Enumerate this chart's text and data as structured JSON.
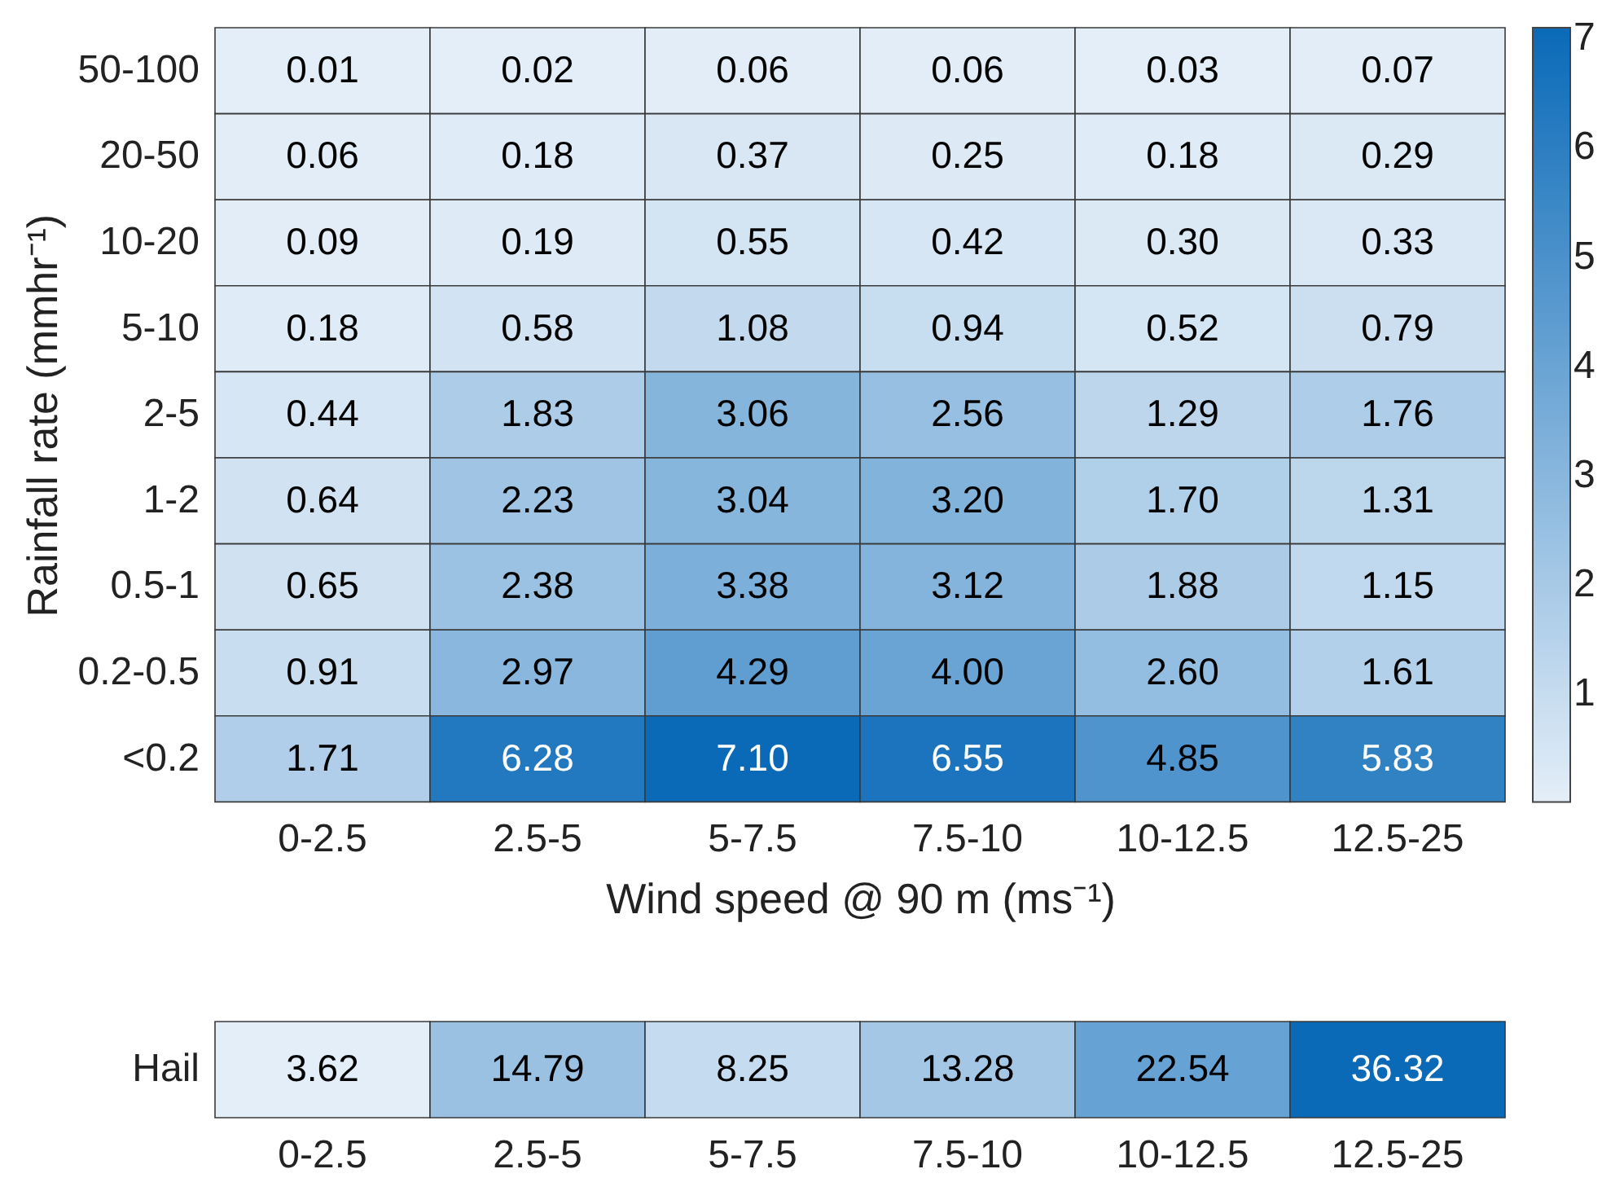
{
  "chart_data": [
    {
      "type": "heatmap",
      "xlabel": "Wind speed @ 90 m (ms⁻¹)",
      "ylabel": "Rainfall rate (mmhr⁻¹)",
      "categories": [
        "0-2.5",
        "2.5-5",
        "5-7.5",
        "7.5-10",
        "10-12.5",
        "12.5-25"
      ],
      "y_categories": [
        "50-100",
        "20-50",
        "10-20",
        "5-10",
        "2-5",
        "1-2",
        "0.5-1",
        "0.2-0.5",
        "<0.2"
      ],
      "cells": [
        [
          0.01,
          0.02,
          0.06,
          0.06,
          0.03,
          0.07
        ],
        [
          0.06,
          0.18,
          0.37,
          0.25,
          0.18,
          0.29
        ],
        [
          0.09,
          0.19,
          0.55,
          0.42,
          0.3,
          0.33
        ],
        [
          0.18,
          0.58,
          1.08,
          0.94,
          0.52,
          0.79
        ],
        [
          0.44,
          1.83,
          3.06,
          2.56,
          1.29,
          1.76
        ],
        [
          0.64,
          2.23,
          3.04,
          3.2,
          1.7,
          1.31
        ],
        [
          0.65,
          2.38,
          3.38,
          3.12,
          1.88,
          1.15
        ],
        [
          0.91,
          2.97,
          4.29,
          4.0,
          2.6,
          1.61
        ],
        [
          1.71,
          6.28,
          7.1,
          6.55,
          4.85,
          5.83
        ]
      ],
      "cell_labels": [
        [
          "0.01",
          "0.02",
          "0.06",
          "0.06",
          "0.03",
          "0.07"
        ],
        [
          "0.06",
          "0.18",
          "0.37",
          "0.25",
          "0.18",
          "0.29"
        ],
        [
          "0.09",
          "0.19",
          "0.55",
          "0.42",
          "0.30",
          "0.33"
        ],
        [
          "0.18",
          "0.58",
          "1.08",
          "0.94",
          "0.52",
          "0.79"
        ],
        [
          "0.44",
          "1.83",
          "3.06",
          "2.56",
          "1.29",
          "1.76"
        ],
        [
          "0.64",
          "2.23",
          "3.04",
          "3.20",
          "1.70",
          "1.31"
        ],
        [
          "0.65",
          "2.38",
          "3.38",
          "3.12",
          "1.88",
          "1.15"
        ],
        [
          "0.91",
          "2.97",
          "4.29",
          "4.00",
          "2.60",
          "1.61"
        ],
        [
          "1.71",
          "6.28",
          "7.10",
          "6.55",
          "4.85",
          "5.83"
        ]
      ],
      "clim": [
        0.01,
        7.1
      ],
      "cticks": [
        1,
        2,
        3,
        4,
        5,
        6,
        7
      ]
    },
    {
      "type": "heatmap",
      "categories": [
        "0-2.5",
        "2.5-5",
        "5-7.5",
        "7.5-10",
        "10-12.5",
        "12.5-25"
      ],
      "y_categories": [
        "Hail"
      ],
      "cells": [
        [
          3.62,
          14.79,
          8.25,
          13.28,
          22.54,
          36.32
        ]
      ],
      "cell_labels": [
        [
          "3.62",
          "14.79",
          "8.25",
          "13.28",
          "22.54",
          "36.32"
        ]
      ]
    }
  ]
}
